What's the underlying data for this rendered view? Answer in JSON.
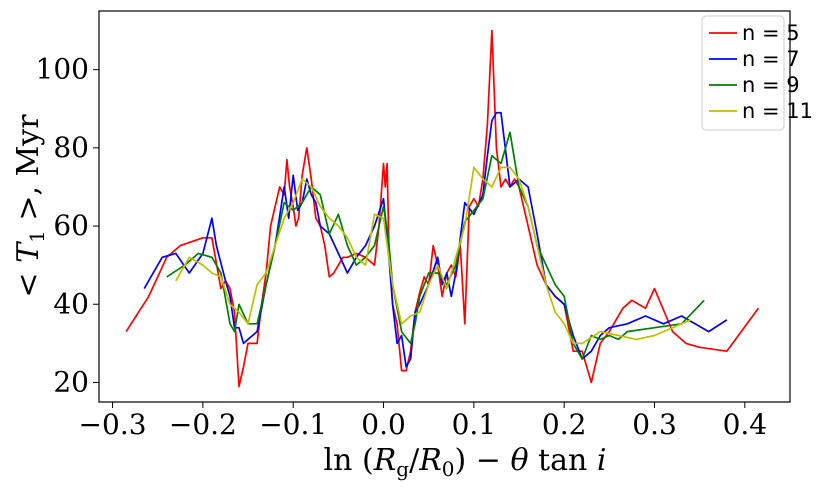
{
  "chart_data": {
    "type": "line",
    "title": "",
    "xlabel": "ln (R_g/R_0) − θ tan i",
    "ylabel": "< T_1 >, Myr",
    "xlim": [
      -0.315,
      0.45
    ],
    "ylim": [
      15,
      115
    ],
    "x_ticks": [
      -0.3,
      -0.2,
      -0.1,
      0.0,
      0.1,
      0.2,
      0.3,
      0.4
    ],
    "x_tick_labels": [
      "−0.3",
      "−0.2",
      "−0.1",
      "0.0",
      "0.1",
      "0.2",
      "0.3",
      "0.4"
    ],
    "y_ticks": [
      20,
      40,
      60,
      80,
      100
    ],
    "y_tick_labels": [
      "20",
      "40",
      "60",
      "80",
      "100"
    ],
    "grid": false,
    "legend_position": "top-right",
    "series": [
      {
        "name": "n = 5",
        "color": "#ff0000",
        "x": [
          -0.285,
          -0.26,
          -0.24,
          -0.225,
          -0.2,
          -0.19,
          -0.18,
          -0.175,
          -0.17,
          -0.165,
          -0.16,
          -0.155,
          -0.15,
          -0.14,
          -0.135,
          -0.13,
          -0.125,
          -0.12,
          -0.115,
          -0.11,
          -0.107,
          -0.104,
          -0.1,
          -0.097,
          -0.094,
          -0.09,
          -0.085,
          -0.08,
          -0.075,
          -0.07,
          -0.065,
          -0.06,
          -0.055,
          -0.05,
          -0.045,
          -0.04,
          -0.03,
          -0.02,
          -0.01,
          -0.005,
          0.0,
          0.002,
          0.004,
          0.006,
          0.01,
          0.015,
          0.02,
          0.025,
          0.03,
          0.035,
          0.04,
          0.045,
          0.05,
          0.055,
          0.06,
          0.065,
          0.07,
          0.075,
          0.08,
          0.085,
          0.09,
          0.095,
          0.1,
          0.105,
          0.11,
          0.115,
          0.12,
          0.125,
          0.13,
          0.135,
          0.14,
          0.145,
          0.15,
          0.16,
          0.17,
          0.18,
          0.19,
          0.2,
          0.21,
          0.22,
          0.23,
          0.24,
          0.25,
          0.265,
          0.275,
          0.29,
          0.3,
          0.32,
          0.335,
          0.35,
          0.38,
          0.415
        ],
        "y": [
          33,
          42,
          52,
          55,
          57,
          57,
          44,
          46,
          44,
          38,
          19,
          24,
          30,
          30,
          40,
          48,
          60,
          65,
          70,
          68,
          77,
          70,
          65,
          60,
          62,
          73,
          80,
          72,
          62,
          60,
          55,
          47,
          48,
          50,
          52,
          52,
          53,
          52,
          50,
          60,
          76,
          70,
          76,
          55,
          40,
          35,
          23,
          23,
          28,
          38,
          43,
          47,
          45,
          55,
          50,
          42,
          48,
          50,
          47,
          55,
          35,
          65,
          67,
          65,
          72,
          86,
          110,
          80,
          70,
          72,
          70,
          72,
          70,
          60,
          50,
          45,
          42,
          40,
          28,
          28,
          20,
          30,
          33,
          39,
          41,
          39,
          44,
          33,
          30,
          29,
          28,
          39
        ]
      },
      {
        "name": "n = 7",
        "color": "#0000ff",
        "x": [
          -0.265,
          -0.245,
          -0.23,
          -0.215,
          -0.2,
          -0.19,
          -0.185,
          -0.175,
          -0.17,
          -0.165,
          -0.16,
          -0.155,
          -0.15,
          -0.14,
          -0.13,
          -0.12,
          -0.11,
          -0.105,
          -0.1,
          -0.095,
          -0.09,
          -0.085,
          -0.08,
          -0.075,
          -0.07,
          -0.06,
          -0.05,
          -0.04,
          -0.03,
          -0.02,
          -0.01,
          0.0,
          0.005,
          0.01,
          0.015,
          0.02,
          0.025,
          0.03,
          0.035,
          0.04,
          0.05,
          0.06,
          0.065,
          0.07,
          0.075,
          0.08,
          0.09,
          0.1,
          0.11,
          0.115,
          0.12,
          0.125,
          0.13,
          0.14,
          0.15,
          0.16,
          0.17,
          0.18,
          0.19,
          0.2,
          0.21,
          0.22,
          0.23,
          0.24,
          0.25,
          0.27,
          0.29,
          0.31,
          0.33,
          0.36,
          0.38
        ],
        "y": [
          44,
          52,
          53,
          48,
          53,
          62,
          55,
          46,
          42,
          34,
          34,
          30,
          31,
          33,
          45,
          55,
          70,
          62,
          73,
          64,
          66,
          72,
          68,
          66,
          60,
          58,
          53,
          48,
          52,
          55,
          60,
          67,
          55,
          40,
          30,
          32,
          24,
          26,
          38,
          40,
          45,
          52,
          45,
          48,
          42,
          48,
          66,
          63,
          68,
          78,
          87,
          89,
          89,
          70,
          72,
          70,
          58,
          45,
          42,
          40,
          32,
          26,
          28,
          32,
          34,
          35,
          37,
          35,
          37,
          33,
          36
        ]
      },
      {
        "name": "n = 9",
        "color": "#008000",
        "x": [
          -0.24,
          -0.22,
          -0.205,
          -0.19,
          -0.18,
          -0.17,
          -0.165,
          -0.16,
          -0.15,
          -0.14,
          -0.13,
          -0.12,
          -0.11,
          -0.1,
          -0.09,
          -0.08,
          -0.07,
          -0.06,
          -0.05,
          -0.04,
          -0.03,
          -0.02,
          -0.01,
          0.0,
          0.005,
          0.01,
          0.02,
          0.03,
          0.035,
          0.04,
          0.05,
          0.06,
          0.07,
          0.08,
          0.09,
          0.1,
          0.11,
          0.12,
          0.13,
          0.14,
          0.15,
          0.16,
          0.17,
          0.18,
          0.19,
          0.2,
          0.21,
          0.22,
          0.23,
          0.24,
          0.25,
          0.26,
          0.27,
          0.3,
          0.33,
          0.355
        ],
        "y": [
          47,
          50,
          53,
          52,
          48,
          35,
          33,
          40,
          35,
          35,
          45,
          55,
          66,
          64,
          66,
          70,
          68,
          58,
          63,
          55,
          50,
          52,
          55,
          65,
          58,
          45,
          33,
          30,
          35,
          42,
          48,
          48,
          45,
          50,
          61,
          64,
          67,
          78,
          76,
          84,
          70,
          65,
          55,
          50,
          45,
          42,
          30,
          26,
          32,
          31,
          32,
          31,
          33,
          34,
          35,
          41
        ]
      },
      {
        "name": "n = 11",
        "color": "#bfbf00",
        "x": [
          -0.23,
          -0.215,
          -0.2,
          -0.19,
          -0.18,
          -0.17,
          -0.16,
          -0.15,
          -0.14,
          -0.13,
          -0.12,
          -0.11,
          -0.1,
          -0.09,
          -0.08,
          -0.07,
          -0.06,
          -0.05,
          -0.04,
          -0.03,
          -0.02,
          -0.01,
          0.0,
          0.01,
          0.02,
          0.03,
          0.04,
          0.05,
          0.06,
          0.07,
          0.08,
          0.09,
          0.1,
          0.11,
          0.12,
          0.13,
          0.14,
          0.15,
          0.16,
          0.17,
          0.18,
          0.19,
          0.2,
          0.21,
          0.22,
          0.24,
          0.26,
          0.28,
          0.3,
          0.32,
          0.34
        ],
        "y": [
          46,
          52,
          50,
          48,
          47,
          40,
          38,
          35,
          45,
          48,
          55,
          62,
          66,
          72,
          70,
          65,
          62,
          60,
          57,
          52,
          50,
          63,
          62,
          45,
          35,
          37,
          38,
          45,
          50,
          44,
          52,
          60,
          75,
          72,
          70,
          75,
          75,
          72,
          65,
          55,
          45,
          38,
          35,
          30,
          30,
          33,
          32,
          31,
          32,
          34,
          36
        ]
      }
    ]
  }
}
